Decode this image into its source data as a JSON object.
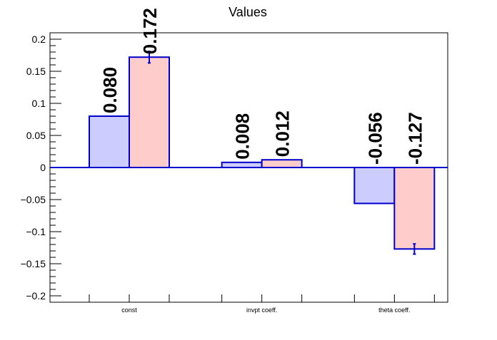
{
  "chart_data": {
    "type": "bar",
    "title": "Values",
    "xlabel": "",
    "ylabel": "",
    "categories": [
      "const",
      "invpt coeff.",
      "theta coeff."
    ],
    "ylim": [
      -0.21,
      0.21
    ],
    "y_ticks": [
      -0.2,
      -0.15,
      -0.1,
      -0.05,
      0,
      0.05,
      0.1,
      0.15,
      0.2
    ],
    "y_tick_labels": [
      "−0.2",
      "−0.15",
      "−0.1",
      "−0.05",
      "0",
      "0.05",
      "0.1",
      "0.15",
      "0.2"
    ],
    "grid": false,
    "legend": "none",
    "series": [
      {
        "values": [
          0.08,
          0.008,
          -0.056
        ],
        "labels": [
          "0.080",
          "0.008",
          "-0.056"
        ],
        "fill": "#ccccff",
        "stroke": "#0000cc"
      },
      {
        "values": [
          0.172,
          0.012,
          -0.127
        ],
        "labels": [
          "0.172",
          "0.012",
          "-0.127"
        ],
        "errors": [
          0.009,
          0.0,
          0.008
        ],
        "fill": "#ffcccc",
        "stroke": "#0000cc"
      }
    ]
  }
}
